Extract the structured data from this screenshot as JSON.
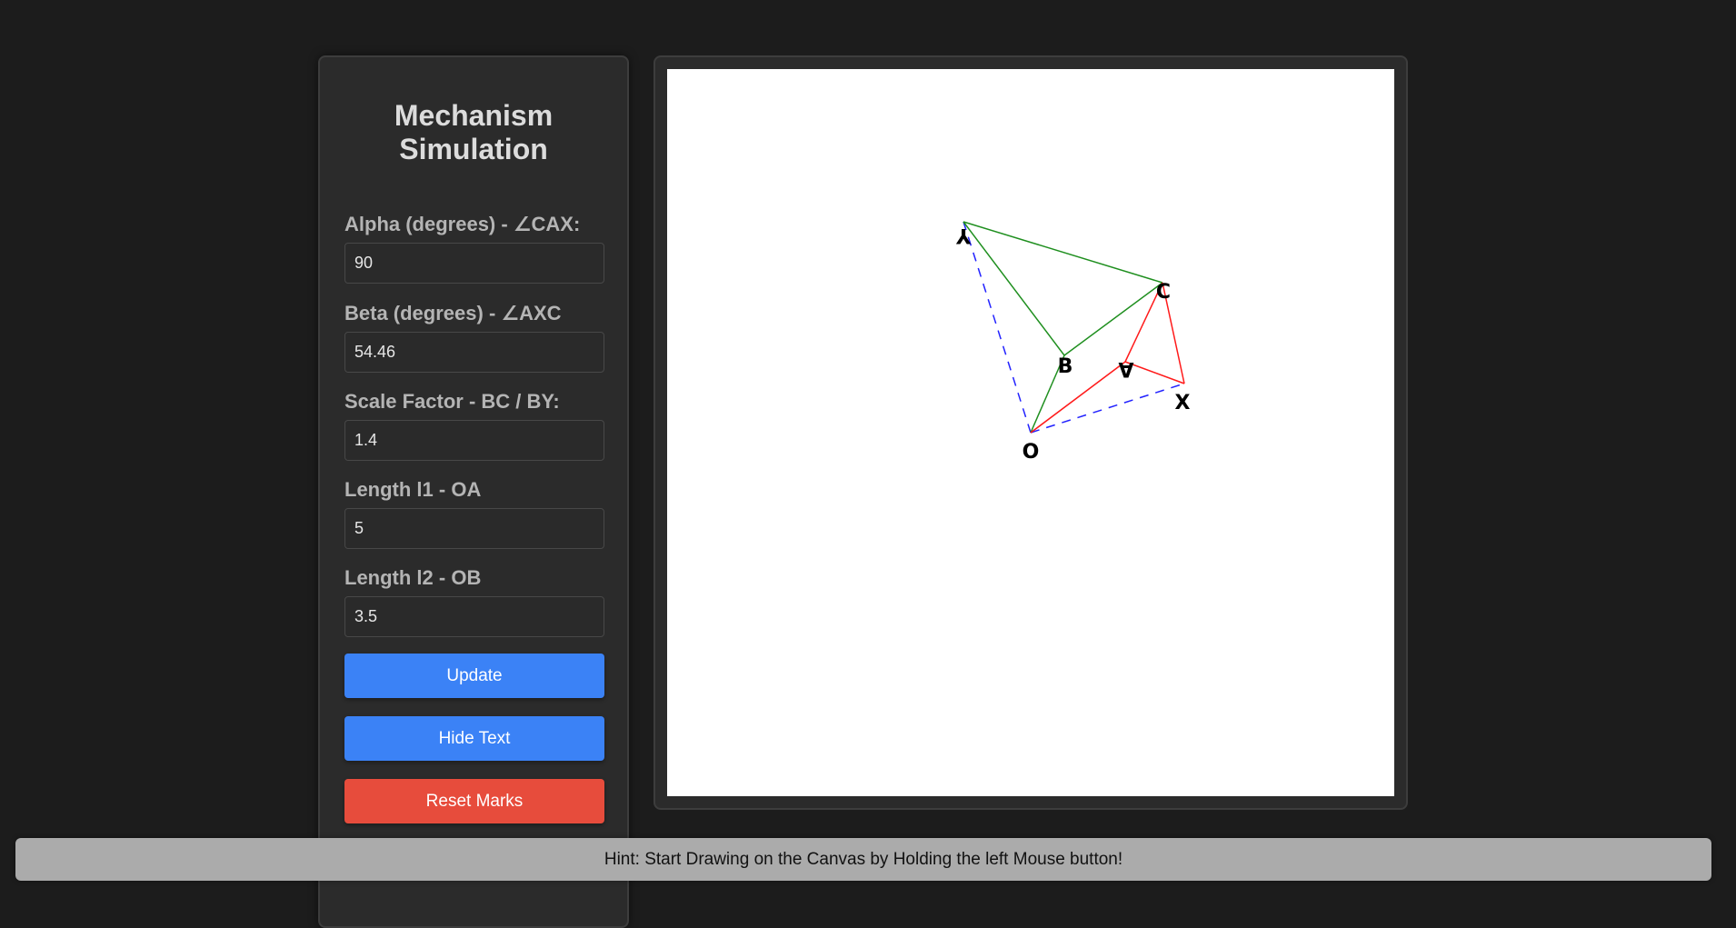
{
  "panel": {
    "title": "Mechanism Simulation",
    "fields": [
      {
        "label": "Alpha (degrees) - ∠CAX:",
        "value": "90"
      },
      {
        "label": "Beta (degrees) - ∠AXC",
        "value": "54.46"
      },
      {
        "label": "Scale Factor - BC / BY:",
        "value": "1.4"
      },
      {
        "label": "Length l1 - OA",
        "value": "5"
      },
      {
        "label": "Length l2 - OB",
        "value": "3.5"
      }
    ],
    "buttons": {
      "update": "Update",
      "hide_text": "Hide Text",
      "reset_marks": "Reset Marks"
    }
  },
  "canvas": {
    "point_labels": {
      "Y": "Y",
      "C": "C",
      "B": "B",
      "A": "A",
      "X": "X",
      "O": "O"
    }
  },
  "hint": "Hint: Start Drawing on the Canvas by Holding the left Mouse button!",
  "colors": {
    "background": "#1c1c1c",
    "panel": "#2b2b2b",
    "button_primary": "#3b82f6",
    "button_danger": "#e74c3c",
    "green_linkage": "#1f8f1f",
    "red_linkage": "#ff1a1a",
    "blue_dashed": "#2222ff"
  }
}
